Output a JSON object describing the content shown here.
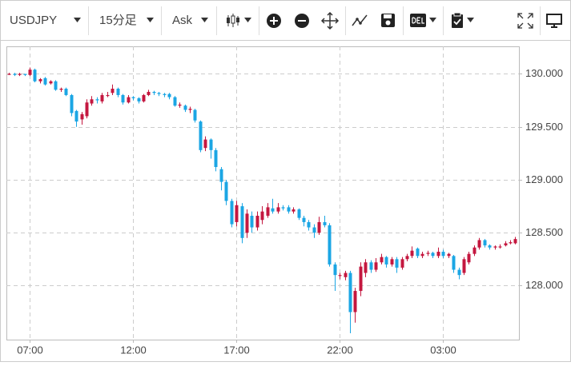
{
  "toolbar": {
    "symbol": "USDJPY",
    "timeframe": "15分足",
    "price_side": "Ask"
  },
  "chart_data": {
    "type": "candlestick",
    "up_color": "#c4173f",
    "down_color": "#1ba6e4",
    "grid": true,
    "xlim": [
      -0.5,
      98.7
    ],
    "ylim": [
      127.49,
      130.26
    ],
    "xticks": [
      {
        "value": 4,
        "label": "07:00"
      },
      {
        "value": 24,
        "label": "12:00"
      },
      {
        "value": 44,
        "label": "17:00"
      },
      {
        "value": 64,
        "label": "22:00"
      },
      {
        "value": 84,
        "label": "03:00"
      }
    ],
    "yticks": [
      {
        "value": 128,
        "label": "128.000"
      },
      {
        "value": 128.5,
        "label": "128.500"
      },
      {
        "value": 129,
        "label": "129.000"
      },
      {
        "value": 129.5,
        "label": "129.500"
      },
      {
        "value": 130,
        "label": "130.000"
      }
    ],
    "open": [
      130.0,
      130.0,
      129.99,
      130.0,
      129.99,
      130.04,
      129.93,
      129.96,
      129.91,
      129.93,
      129.85,
      129.86,
      129.8,
      129.65,
      129.57,
      129.6,
      129.72,
      129.76,
      129.74,
      129.8,
      129.82,
      129.86,
      129.8,
      129.73,
      129.78,
      129.77,
      129.74,
      129.8,
      129.83,
      129.82,
      129.81,
      129.81,
      129.78,
      129.7,
      129.7,
      129.66,
      129.66,
      129.55,
      129.3,
      129.38,
      129.28,
      129.1,
      128.98,
      128.8,
      128.6,
      128.75,
      128.5,
      128.66,
      128.55,
      128.62,
      128.66,
      128.73,
      128.7,
      128.74,
      128.74,
      128.7,
      128.72,
      128.64,
      128.6,
      128.55,
      128.5,
      128.6,
      128.57,
      128.2,
      128.1,
      128.08,
      128.12,
      127.75,
      127.95,
      128.12,
      128.22,
      128.15,
      128.22,
      128.27,
      128.2,
      128.25,
      128.17,
      128.25,
      128.28,
      128.35,
      128.28,
      128.3,
      128.31,
      128.28,
      128.32,
      128.28,
      128.28,
      128.15,
      128.12,
      128.22,
      128.3,
      128.36,
      128.43,
      128.38,
      128.36,
      128.37,
      128.38,
      128.4,
      128.4
    ],
    "high": [
      130.01,
      130.01,
      130.01,
      130.0,
      130.06,
      130.05,
      129.96,
      129.97,
      129.94,
      129.94,
      129.87,
      129.87,
      129.81,
      129.66,
      129.64,
      129.76,
      129.79,
      129.78,
      129.82,
      129.83,
      129.9,
      129.87,
      129.81,
      129.8,
      129.79,
      129.78,
      129.81,
      129.85,
      129.84,
      129.83,
      129.82,
      129.82,
      129.79,
      129.73,
      129.71,
      129.69,
      129.67,
      129.56,
      129.41,
      129.39,
      129.3,
      129.12,
      129.0,
      128.82,
      128.8,
      128.78,
      128.72,
      128.7,
      128.7,
      128.75,
      128.78,
      128.82,
      128.78,
      128.76,
      128.76,
      128.74,
      128.73,
      128.66,
      128.62,
      128.58,
      128.65,
      128.66,
      128.59,
      128.22,
      128.12,
      128.14,
      128.14,
      127.98,
      128.22,
      128.25,
      128.24,
      128.26,
      128.3,
      128.28,
      128.27,
      128.27,
      128.27,
      128.3,
      128.37,
      128.36,
      128.32,
      128.33,
      128.32,
      128.36,
      128.34,
      128.31,
      128.29,
      128.17,
      128.27,
      128.32,
      128.38,
      128.45,
      128.44,
      128.39,
      128.38,
      128.39,
      128.42,
      128.43,
      128.46
    ],
    "low": [
      129.99,
      129.98,
      129.98,
      129.98,
      129.98,
      129.92,
      129.91,
      129.89,
      129.9,
      129.84,
      129.83,
      129.79,
      129.6,
      129.5,
      129.52,
      129.58,
      129.7,
      129.72,
      129.72,
      129.78,
      129.8,
      129.78,
      129.71,
      129.72,
      129.75,
      129.72,
      129.73,
      129.79,
      129.8,
      129.79,
      129.78,
      129.76,
      129.69,
      129.68,
      129.64,
      129.63,
      129.54,
      129.26,
      129.27,
      129.2,
      129.08,
      128.9,
      128.76,
      128.55,
      128.56,
      128.4,
      128.45,
      128.5,
      128.52,
      128.58,
      128.64,
      128.68,
      128.68,
      128.71,
      128.68,
      128.68,
      128.62,
      128.56,
      128.52,
      128.45,
      128.48,
      128.55,
      128.18,
      127.95,
      128.06,
      128.05,
      127.55,
      127.65,
      127.9,
      128.08,
      128.12,
      128.13,
      128.2,
      128.17,
      128.18,
      128.12,
      128.15,
      128.23,
      128.26,
      128.26,
      128.26,
      128.28,
      128.26,
      128.26,
      128.26,
      128.26,
      128.12,
      128.06,
      128.1,
      128.2,
      128.28,
      128.34,
      128.36,
      128.34,
      128.34,
      128.35,
      128.37,
      128.39,
      128.39
    ],
    "close": [
      130.0,
      129.99,
      130.0,
      129.99,
      130.04,
      129.93,
      129.95,
      129.9,
      129.93,
      129.85,
      129.86,
      129.8,
      129.63,
      129.55,
      129.62,
      129.73,
      129.76,
      129.75,
      129.8,
      129.8,
      129.86,
      129.8,
      129.73,
      129.78,
      129.77,
      129.74,
      129.8,
      129.83,
      129.82,
      129.81,
      129.8,
      129.78,
      129.7,
      129.71,
      129.66,
      129.67,
      129.56,
      129.28,
      129.38,
      129.28,
      129.12,
      128.98,
      128.8,
      128.58,
      128.76,
      128.45,
      128.68,
      128.55,
      128.66,
      128.7,
      128.74,
      128.7,
      128.74,
      128.73,
      128.7,
      128.72,
      128.64,
      128.6,
      128.55,
      128.5,
      128.6,
      128.57,
      128.2,
      128.1,
      128.1,
      128.12,
      127.75,
      127.95,
      128.18,
      128.22,
      128.15,
      128.22,
      128.27,
      128.2,
      128.25,
      128.17,
      128.25,
      128.28,
      128.33,
      128.28,
      128.3,
      128.31,
      128.28,
      128.32,
      128.28,
      128.3,
      128.15,
      128.1,
      128.25,
      128.3,
      128.36,
      128.43,
      128.38,
      128.36,
      128.37,
      128.37,
      128.4,
      128.41,
      128.44
    ]
  }
}
